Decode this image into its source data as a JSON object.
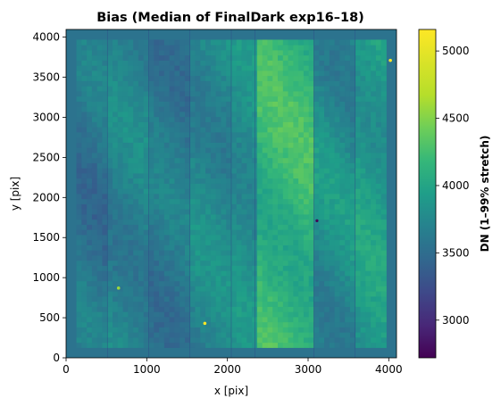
{
  "chart_data": {
    "type": "heatmap",
    "title": "Bias (Median of FinalDark exp16–18)",
    "xlabel": "x [pix]",
    "ylabel": "y [pix]",
    "xlim": [
      0,
      4096
    ],
    "ylim": [
      0,
      4096
    ],
    "x_ticks": [
      0,
      1000,
      2000,
      3000,
      4000
    ],
    "y_ticks": [
      0,
      500,
      1000,
      1500,
      2000,
      2500,
      3000,
      3500,
      4000
    ],
    "colormap": "viridis",
    "colorbar": {
      "label": "DN (1–99% stretch)",
      "range": [
        2720,
        5160
      ],
      "ticks": [
        3000,
        3500,
        4000,
        4500,
        5000
      ]
    },
    "columns": [
      {
        "x_range": [
          0,
          512
        ],
        "dn_range": [
          3500,
          3850
        ]
      },
      {
        "x_range": [
          512,
          1024
        ],
        "dn_range": [
          3650,
          3950
        ]
      },
      {
        "x_range": [
          1024,
          1536
        ],
        "dn_range": [
          3550,
          3850
        ]
      },
      {
        "x_range": [
          1536,
          2048
        ],
        "dn_range": [
          3700,
          4000
        ]
      },
      {
        "x_range": [
          2048,
          2340
        ],
        "dn_range": [
          3800,
          4050
        ]
      },
      {
        "x_range": [
          2340,
          3072
        ],
        "dn_range": [
          4150,
          4500
        ]
      },
      {
        "x_range": [
          3072,
          3584
        ],
        "dn_range": [
          3700,
          4100
        ]
      },
      {
        "x_range": [
          3584,
          4096
        ],
        "dn_range": [
          3900,
          4200
        ]
      }
    ],
    "frame_border_dn": 3650,
    "hot_pixels": [
      {
        "x": 1720,
        "y": 430,
        "dn": 5160
      },
      {
        "x": 650,
        "y": 870,
        "dn": 4800
      },
      {
        "x": 4020,
        "y": 3710,
        "dn": 5160
      }
    ],
    "cold_pixels": [
      {
        "x": 3110,
        "y": 1710,
        "dn": 2720
      }
    ]
  }
}
